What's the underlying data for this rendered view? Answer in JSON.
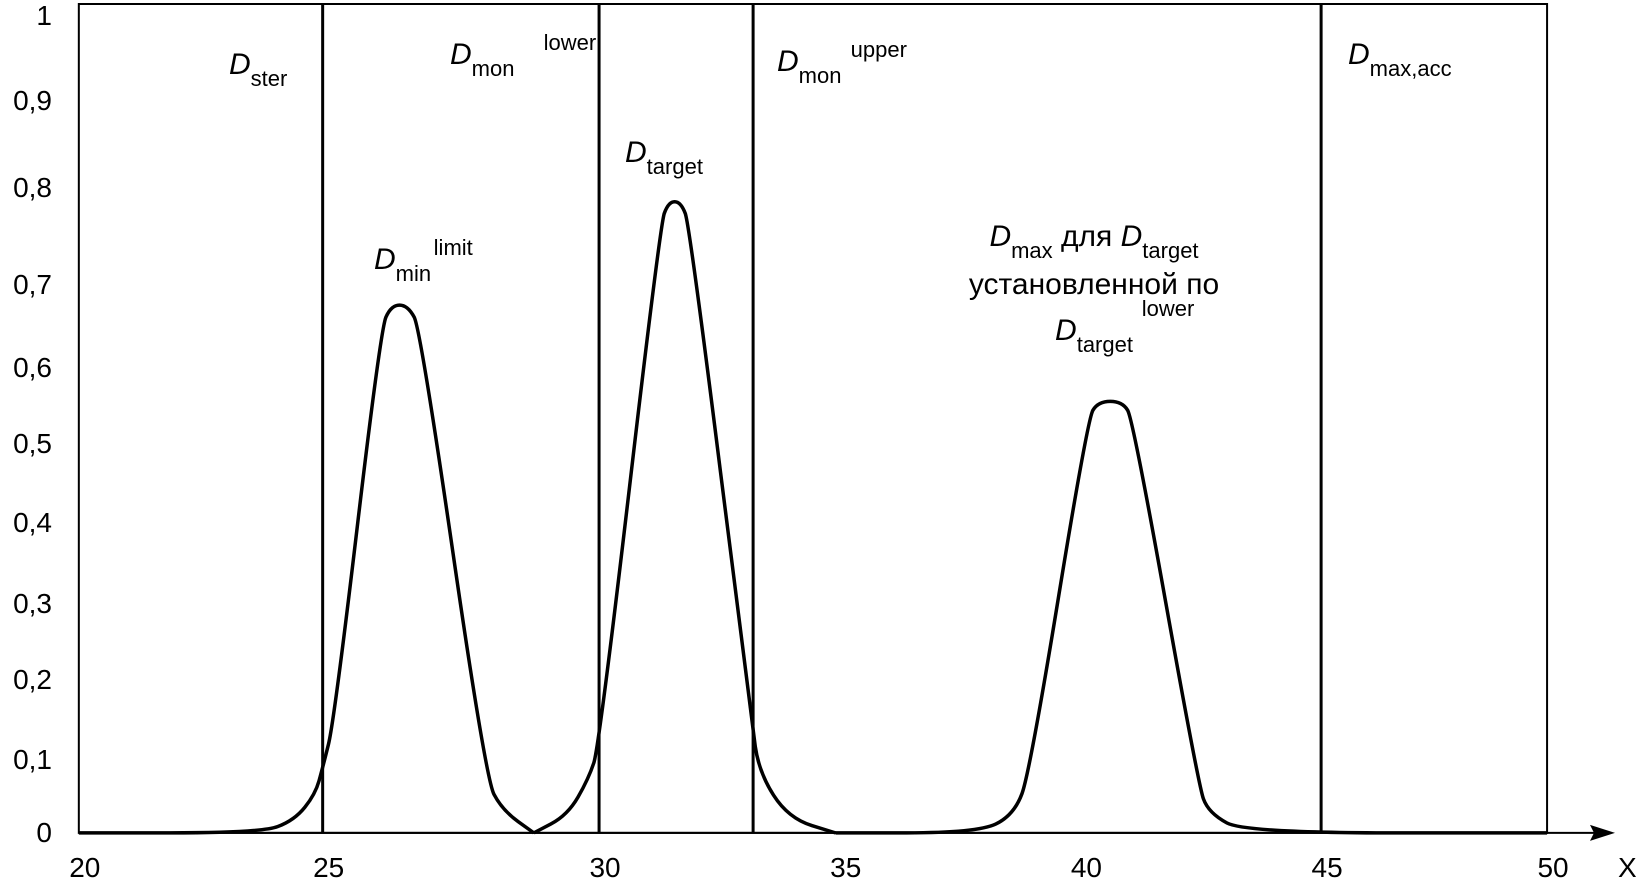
{
  "chart_data": {
    "type": "line",
    "title": "",
    "xlabel": "X",
    "ylabel": "",
    "xlim": [
      20,
      50
    ],
    "ylim": [
      0,
      1
    ],
    "grid": false,
    "legend": "none",
    "x_ticks": [
      "20",
      "25",
      "30",
      "35",
      "40",
      "45",
      "50"
    ],
    "x_tick_values": [
      20,
      25,
      30,
      35,
      40,
      45,
      50
    ],
    "y_ticks": [
      "0",
      "0,1",
      "0,2",
      "0,3",
      "0,4",
      "0,5",
      "0,6",
      "0,7",
      "0,8",
      "0,9",
      "1"
    ],
    "y_tick_values": [
      0,
      0.1,
      0.2,
      0.3,
      0.4,
      0.5,
      0.6,
      0.7,
      0.8,
      0.9,
      1
    ],
    "vertical_lines": [
      {
        "name": "D_ster",
        "x": 25
      },
      {
        "name": "D_mon_lower",
        "x": 30
      },
      {
        "name": "D_mon_upper",
        "x": 33.2
      },
      {
        "name": "D_max_acc",
        "x": 45
      }
    ],
    "series": [
      {
        "name": "D_min_limit distribution",
        "peak_x": 26.4,
        "peak_y": 0.68,
        "points": [
          [
            20,
            0
          ],
          [
            23.73,
            0
          ],
          [
            24.42,
            0.017
          ],
          [
            24.85,
            0.053
          ],
          [
            25,
            0.089
          ],
          [
            25.21,
            0.149
          ],
          [
            26.05,
            0.647
          ],
          [
            26.24,
            0.676
          ],
          [
            26.54,
            0.676
          ],
          [
            26.77,
            0.647
          ],
          [
            27.95,
            0.074
          ],
          [
            28.25,
            0.031
          ],
          [
            28.82,
            0
          ]
        ]
      },
      {
        "name": "D_target distribution",
        "peak_x": 31.6,
        "peak_y": 0.79,
        "points": [
          [
            28.82,
            0
          ],
          [
            29.43,
            0.024
          ],
          [
            29.81,
            0.074
          ],
          [
            30,
            0.116
          ],
          [
            31.27,
            0.762
          ],
          [
            31.44,
            0.786
          ],
          [
            31.7,
            0.786
          ],
          [
            31.88,
            0.762
          ],
          [
            33.17,
            0.149
          ],
          [
            33.32,
            0.083
          ],
          [
            33.93,
            0.02
          ],
          [
            34.91,
            0
          ]
        ]
      },
      {
        "name": "D_max for D_target set by D_target_lower",
        "peak_x": 40.6,
        "peak_y": 0.56,
        "points": [
          [
            34.91,
            0
          ],
          [
            37.86,
            0
          ],
          [
            38.62,
            0.024
          ],
          [
            38.95,
            0.083
          ],
          [
            40.15,
            0.533
          ],
          [
            40.37,
            0.556
          ],
          [
            40.87,
            0.556
          ],
          [
            41.09,
            0.533
          ],
          [
            42.45,
            0.066
          ],
          [
            42.66,
            0.027
          ],
          [
            43.43,
            0
          ],
          [
            50,
            0
          ]
        ]
      }
    ],
    "annotations": {
      "ster": {
        "main": "D",
        "sub": "ster"
      },
      "mon_lower": {
        "main": "D",
        "sub": "mon",
        "sup": "lower"
      },
      "mon_upper": {
        "main": "D",
        "sub": "mon",
        "sup": "upper"
      },
      "max_acc": {
        "main": "D",
        "sub": "max,acc"
      },
      "target": {
        "main": "D",
        "sub": "target"
      },
      "min_limit": {
        "main": "D",
        "sub": "min",
        "sup": "limit"
      },
      "dmax": {
        "line1_main": "D",
        "line1_sub": "max",
        "line1_text": " для ",
        "line1_main2": "D",
        "line1_sub2": "target",
        "line2": "установленной по",
        "line3_main": "D",
        "line3_sub": "target",
        "line3_sup": "lower"
      }
    }
  }
}
